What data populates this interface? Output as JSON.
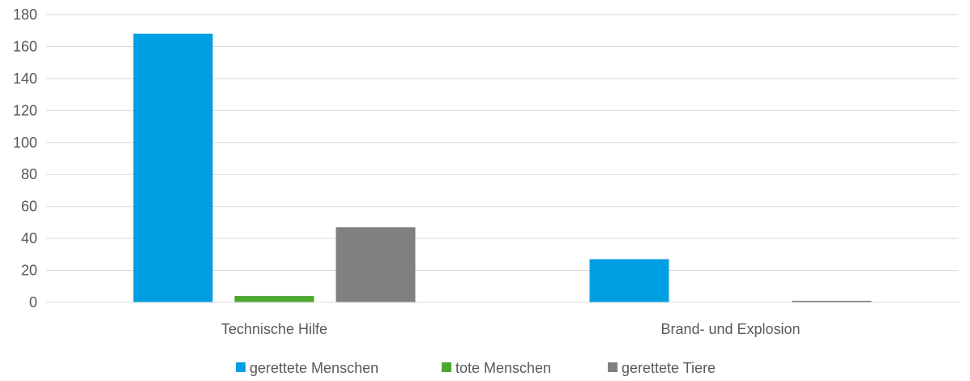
{
  "chart_data": {
    "type": "bar",
    "title": "",
    "xlabel": "",
    "ylabel": "",
    "ylim": [
      0,
      180
    ],
    "yticks": [
      0,
      20,
      40,
      60,
      80,
      100,
      120,
      140,
      160,
      180
    ],
    "grid": true,
    "legend_position": "bottom",
    "categories": [
      "Technische Hilfe",
      "Brand- und Explosion"
    ],
    "series": [
      {
        "name": "gerettete Menschen",
        "color": "#009fe3",
        "values": [
          168,
          27
        ]
      },
      {
        "name": "tote Menschen",
        "color": "#4ca72f",
        "values": [
          4,
          0
        ]
      },
      {
        "name": "gerettete Tiere",
        "color": "#808080",
        "values": [
          47,
          1
        ]
      }
    ]
  }
}
